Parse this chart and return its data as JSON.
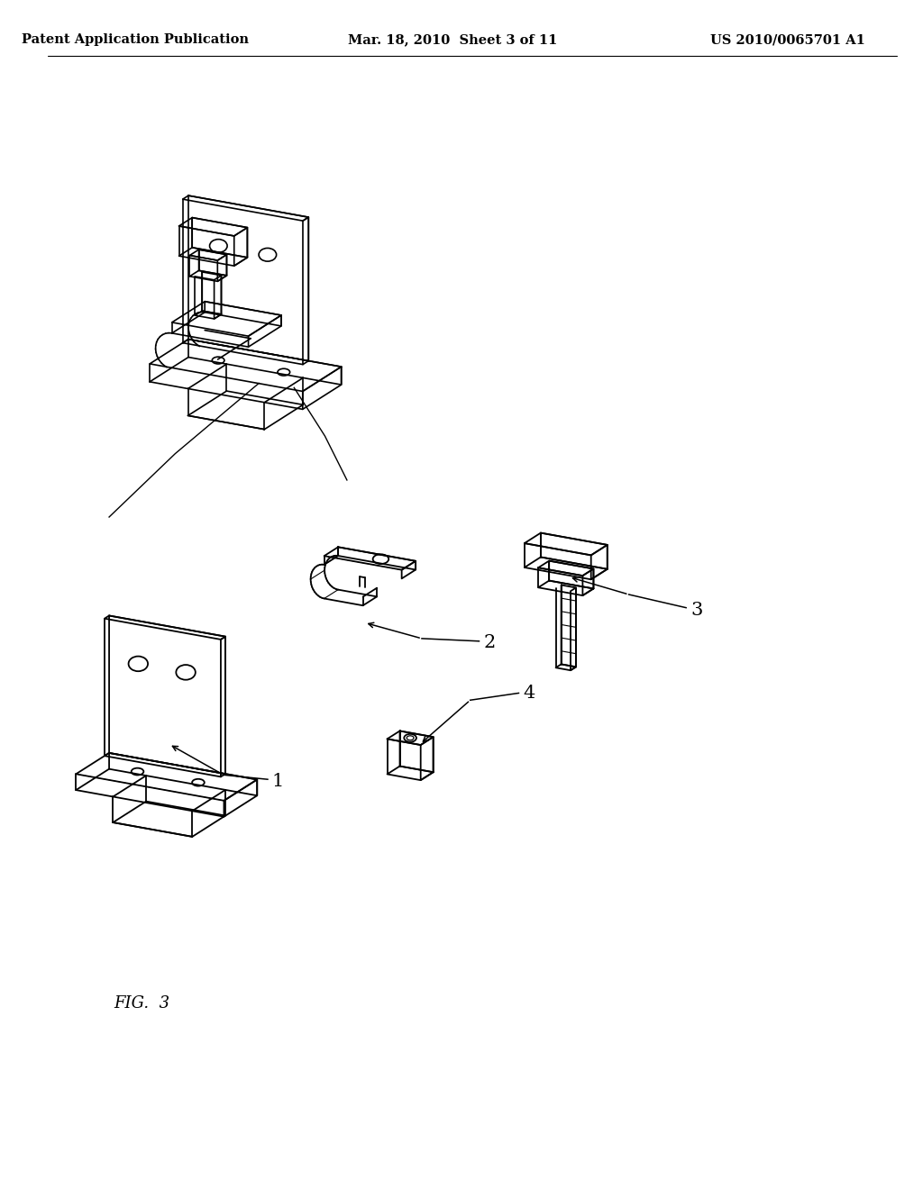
{
  "background_color": "#ffffff",
  "line_color": "#000000",
  "header_left": "Patent Application Publication",
  "header_center": "Mar. 18, 2010  Sheet 3 of 11",
  "header_right": "US 2010/0065701 A1",
  "figure_label": "FIG.  3",
  "part_labels": [
    "1",
    "2",
    "3",
    "4"
  ],
  "header_font_size": 10.5,
  "label_font_size": 15
}
